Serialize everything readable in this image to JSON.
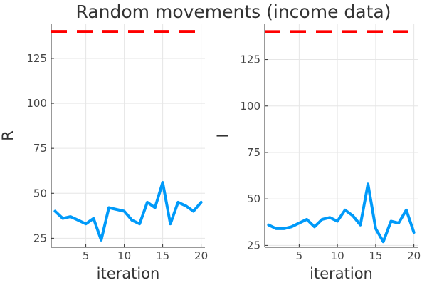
{
  "title": "Random movements (income data)",
  "colors": {
    "series": "#009af9",
    "reference": "#ff0000"
  },
  "chart_data": [
    {
      "type": "line",
      "name": "left",
      "xlabel": "iteration",
      "ylabel": "R",
      "xlim": [
        0.5,
        20.5
      ],
      "ylim": [
        20,
        144
      ],
      "xticks": [
        5,
        10,
        15,
        20
      ],
      "yticks": [
        25,
        50,
        75,
        100,
        125
      ],
      "grid": true,
      "reference_line": {
        "y": 140,
        "style": "dashed"
      },
      "x": [
        1,
        2,
        3,
        4,
        5,
        6,
        7,
        8,
        9,
        10,
        11,
        12,
        13,
        14,
        15,
        16,
        17,
        18,
        19,
        20
      ],
      "values": [
        40,
        36,
        37,
        35,
        33,
        36,
        24,
        42,
        41,
        40,
        35,
        33,
        45,
        42,
        56,
        33,
        45,
        43,
        40,
        45
      ]
    },
    {
      "type": "line",
      "name": "right",
      "xlabel": "iteration",
      "ylabel": "I",
      "xlim": [
        0.5,
        20.5
      ],
      "ylim": [
        24,
        144
      ],
      "xticks": [
        5,
        10,
        15,
        20
      ],
      "yticks": [
        25,
        50,
        75,
        100,
        125
      ],
      "grid": true,
      "reference_line": {
        "y": 140,
        "style": "dashed"
      },
      "x": [
        1,
        2,
        3,
        4,
        5,
        6,
        7,
        8,
        9,
        10,
        11,
        12,
        13,
        14,
        15,
        16,
        17,
        18,
        19,
        20
      ],
      "values": [
        36,
        34,
        34,
        35,
        37,
        39,
        35,
        39,
        40,
        38,
        44,
        41,
        36,
        58,
        34,
        27,
        38,
        37,
        44,
        32
      ]
    }
  ]
}
